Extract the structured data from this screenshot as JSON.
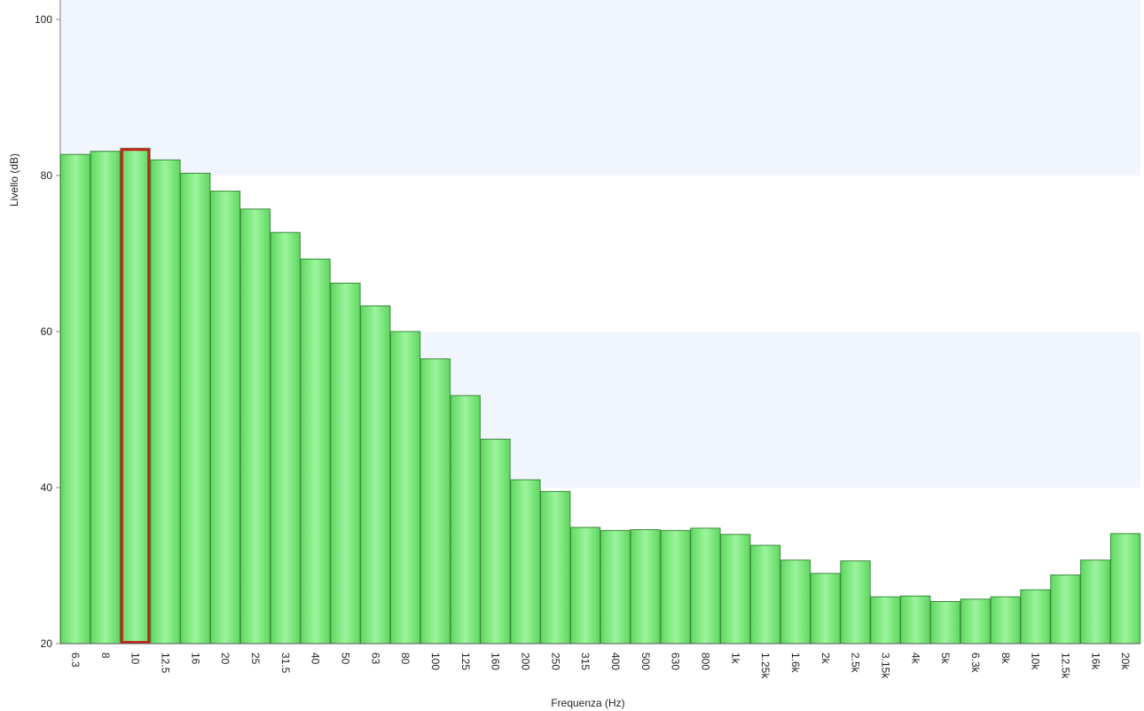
{
  "chart_data": {
    "type": "bar",
    "title": "",
    "xlabel": "Frequenza (Hz)",
    "ylabel": "Livello (dB)",
    "ylim": [
      20,
      100
    ],
    "yticks": [
      20,
      40,
      60,
      80,
      100
    ],
    "grid": "alternating horizontal bands",
    "legend": "none",
    "bar_color": "#5fd65f",
    "bar_highlight_color": "#9cf59c",
    "bar_border_color": "#3a8a3a",
    "band_color": "#f1f5fd",
    "selected_color": "#c0281e",
    "selected_category": "10",
    "categories": [
      "6.3",
      "8",
      "10",
      "12.5",
      "16",
      "20",
      "25",
      "31.5",
      "40",
      "50",
      "63",
      "80",
      "100",
      "125",
      "160",
      "200",
      "250",
      "315",
      "400",
      "500",
      "630",
      "800",
      "1k",
      "1.25k",
      "1.6k",
      "2k",
      "2.5k",
      "3.15k",
      "4k",
      "5k",
      "6.3k",
      "8k",
      "10k",
      "12.5k",
      "16k",
      "20k"
    ],
    "values": [
      82.7,
      83.1,
      83.5,
      82.0,
      80.3,
      78.0,
      75.7,
      72.7,
      69.3,
      66.2,
      63.3,
      60.0,
      56.5,
      51.8,
      46.2,
      41.0,
      39.5,
      34.9,
      34.5,
      34.6,
      34.5,
      34.8,
      34.0,
      32.6,
      30.7,
      29.0,
      30.6,
      26.0,
      26.1,
      25.4,
      25.7,
      26.0,
      26.9,
      28.8,
      30.7,
      34.1
    ]
  }
}
